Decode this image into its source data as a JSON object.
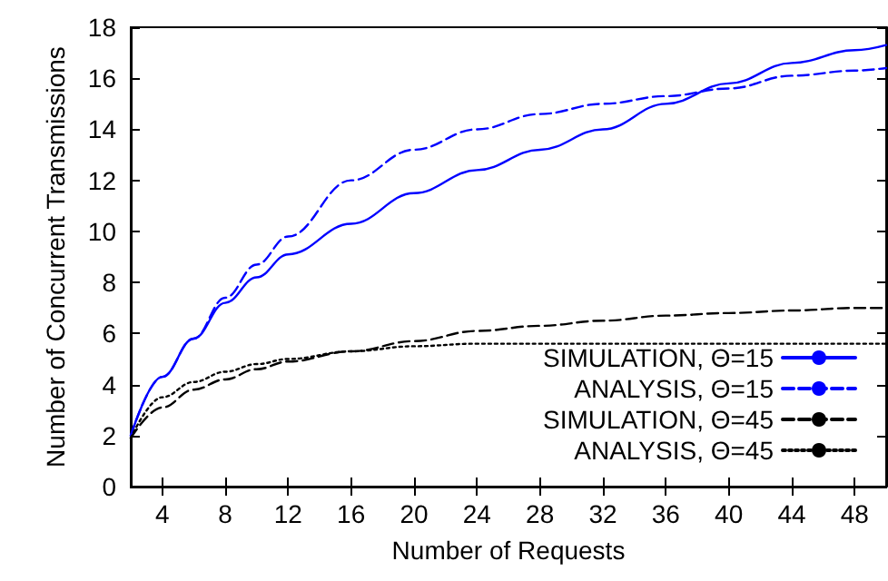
{
  "chart_data": {
    "type": "line",
    "xlabel": "Number of Requests",
    "ylabel": "Number of Concurrent Transmissions",
    "x": [
      2,
      4,
      6,
      8,
      10,
      12,
      16,
      20,
      24,
      28,
      32,
      36,
      40,
      44,
      48,
      50
    ],
    "series": [
      {
        "name": "SIMULATION, Θ=15",
        "color": "#0000ff",
        "line_style": "solid",
        "values": [
          2,
          4.3,
          5.8,
          7.2,
          8.2,
          9.1,
          10.3,
          11.5,
          12.4,
          13.2,
          14.0,
          15.0,
          15.8,
          16.6,
          17.1,
          17.3
        ]
      },
      {
        "name": "ANALYSIS, Θ=15",
        "color": "#0000ff",
        "line_style": "dashed",
        "values": [
          2,
          4.3,
          5.8,
          7.4,
          8.7,
          9.8,
          12.0,
          13.2,
          14.0,
          14.6,
          15.0,
          15.3,
          15.6,
          16.1,
          16.3,
          16.4
        ]
      },
      {
        "name": "SIMULATION, Θ=45",
        "color": "#000000",
        "line_style": "dashed",
        "values": [
          1.9,
          3.1,
          3.8,
          4.2,
          4.6,
          4.9,
          5.3,
          5.7,
          6.1,
          6.3,
          6.5,
          6.7,
          6.8,
          6.9,
          7.0,
          7.0
        ]
      },
      {
        "name": "ANALYSIS, Θ=45",
        "color": "#000000",
        "line_style": "dotted",
        "values": [
          1.9,
          3.5,
          4.1,
          4.5,
          4.8,
          5.0,
          5.3,
          5.5,
          5.6,
          5.6,
          5.6,
          5.6,
          5.6,
          5.6,
          5.6,
          5.6
        ]
      }
    ],
    "xlim": [
      2,
      50
    ],
    "xticks": [
      4,
      8,
      12,
      16,
      20,
      24,
      28,
      32,
      36,
      40,
      44,
      48
    ],
    "ylim": [
      0,
      18
    ],
    "yticks": [
      0,
      2,
      4,
      6,
      8,
      10,
      12,
      14,
      16,
      18
    ],
    "grid": false,
    "legend": "bottom right",
    "marker": "none"
  }
}
